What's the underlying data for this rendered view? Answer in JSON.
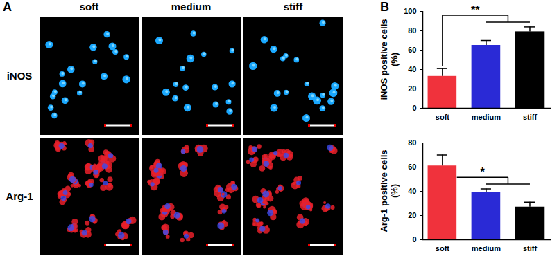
{
  "figure": {
    "panel_a": {
      "label": "A",
      "columns": [
        "soft",
        "medium",
        "stiff"
      ],
      "rows": [
        "iNOS",
        "Arg-1"
      ]
    },
    "panel_b": {
      "label": "B"
    }
  },
  "chart_data": [
    {
      "type": "bar",
      "categories": [
        "soft",
        "medium",
        "stiff"
      ],
      "values": [
        33,
        65,
        79
      ],
      "error": [
        8,
        5,
        5
      ],
      "colors": [
        "#f0323c",
        "#2a2ad6",
        "#000000"
      ],
      "ylabel": "iNOS positive cells\n(%)",
      "ylim": [
        0,
        100
      ],
      "yticks": [
        0,
        20,
        40,
        60,
        80,
        100
      ],
      "annotations": [
        "**"
      ]
    },
    {
      "type": "bar",
      "categories": [
        "soft",
        "medium",
        "stiff"
      ],
      "values": [
        61,
        39,
        27
      ],
      "error": [
        9,
        3,
        4
      ],
      "colors": [
        "#f0323c",
        "#2a2ad6",
        "#000000"
      ],
      "ylabel": "Arg-1 positive cells\n(%)",
      "ylim": [
        0,
        80
      ],
      "yticks": [
        0,
        20,
        40,
        60,
        80
      ],
      "annotations": [
        "*"
      ]
    }
  ]
}
